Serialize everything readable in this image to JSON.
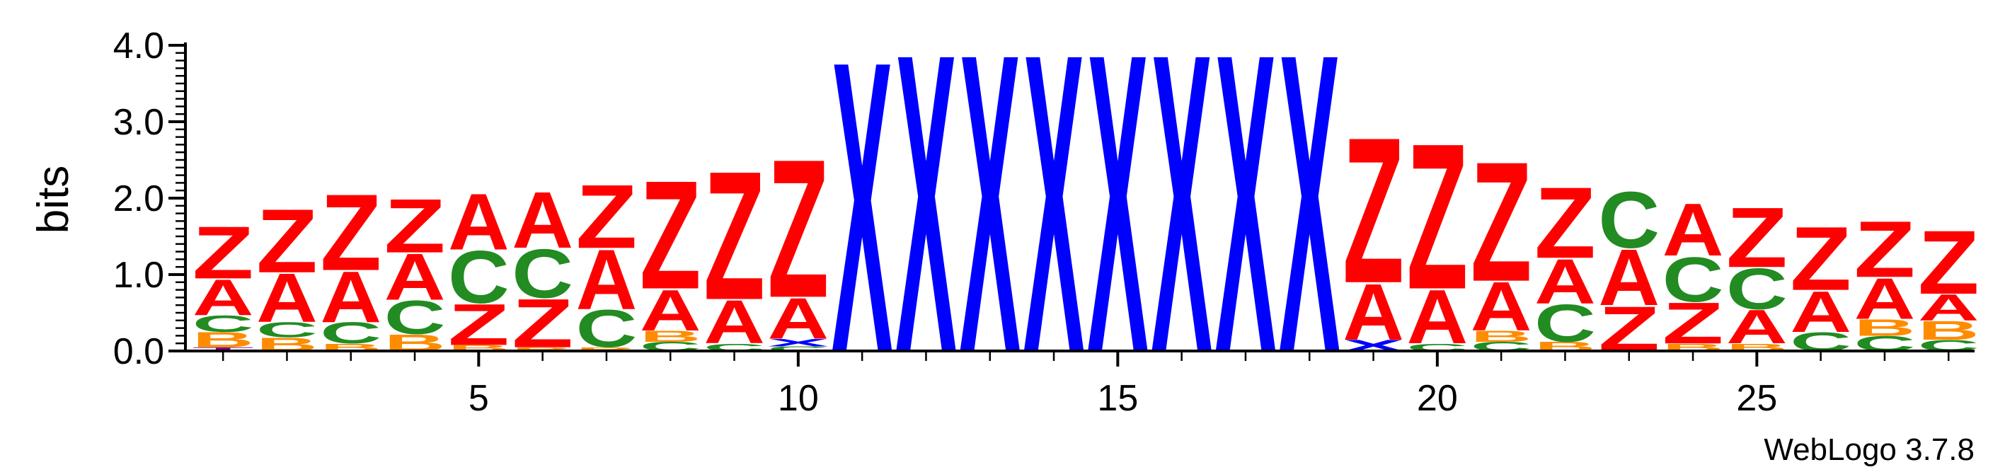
{
  "chart_data": {
    "type": "sequence-logo",
    "ylabel": "bits",
    "ylim": [
      0,
      4.0
    ],
    "y_ticks": [
      "0.0",
      "1.0",
      "2.0",
      "3.0",
      "4.0"
    ],
    "x_ticks": [
      5,
      10,
      15,
      20,
      25
    ],
    "positions": [
      1,
      28
    ],
    "credit": "WebLogo 3.7.8",
    "colors": {
      "Z": "#ff0000",
      "A": "#ff0000",
      "C": "#228b22",
      "B": "#ff8c00",
      "T": "#800080",
      "X": "#0000ff"
    },
    "columns": [
      {
        "pos": 1,
        "stack": [
          [
            "T",
            0.05
          ],
          [
            "B",
            0.2
          ],
          [
            "C",
            0.22
          ],
          [
            "A",
            0.48
          ],
          [
            "Z",
            0.7
          ]
        ]
      },
      {
        "pos": 2,
        "stack": [
          [
            "B",
            0.18
          ],
          [
            "C",
            0.2
          ],
          [
            "A",
            0.65
          ],
          [
            "Z",
            0.85
          ]
        ]
      },
      {
        "pos": 3,
        "stack": [
          [
            "B",
            0.1
          ],
          [
            "C",
            0.28
          ],
          [
            "A",
            0.68
          ],
          [
            "Z",
            1.02
          ]
        ]
      },
      {
        "pos": 4,
        "stack": [
          [
            "B",
            0.22
          ],
          [
            "C",
            0.45
          ],
          [
            "A",
            0.62
          ],
          [
            "Z",
            0.72
          ]
        ]
      },
      {
        "pos": 5,
        "stack": [
          [
            "B",
            0.08
          ],
          [
            "Z",
            0.55
          ],
          [
            "C",
            0.7
          ],
          [
            "A",
            0.75
          ]
        ]
      },
      {
        "pos": 6,
        "stack": [
          [
            "B",
            0.05
          ],
          [
            "Z",
            0.65
          ],
          [
            "C",
            0.65
          ],
          [
            "A",
            0.75
          ]
        ]
      },
      {
        "pos": 7,
        "stack": [
          [
            "B",
            0.05
          ],
          [
            "C",
            0.5
          ],
          [
            "A",
            0.8
          ],
          [
            "Z",
            0.85
          ]
        ]
      },
      {
        "pos": 8,
        "stack": [
          [
            "C",
            0.12
          ],
          [
            "B",
            0.15
          ],
          [
            "A",
            0.55
          ],
          [
            "Z",
            1.45
          ]
        ]
      },
      {
        "pos": 9,
        "stack": [
          [
            "C",
            0.1
          ],
          [
            "A",
            0.58
          ],
          [
            "Z",
            1.72
          ]
        ]
      },
      {
        "pos": 10,
        "stack": [
          [
            "C",
            0.06
          ],
          [
            "X",
            0.1
          ],
          [
            "A",
            0.55
          ],
          [
            "Z",
            1.85
          ]
        ]
      },
      {
        "pos": 11,
        "stack": [
          [
            "X",
            3.9
          ]
        ]
      },
      {
        "pos": 12,
        "stack": [
          [
            "X",
            4.0
          ]
        ]
      },
      {
        "pos": 13,
        "stack": [
          [
            "X",
            4.0
          ]
        ]
      },
      {
        "pos": 14,
        "stack": [
          [
            "X",
            4.0
          ]
        ]
      },
      {
        "pos": 15,
        "stack": [
          [
            "X",
            4.0
          ]
        ]
      },
      {
        "pos": 16,
        "stack": [
          [
            "X",
            4.0
          ]
        ]
      },
      {
        "pos": 17,
        "stack": [
          [
            "X",
            4.0
          ]
        ]
      },
      {
        "pos": 18,
        "stack": [
          [
            "X",
            4.0
          ]
        ]
      },
      {
        "pos": 19,
        "stack": [
          [
            "X",
            0.15
          ],
          [
            "A",
            0.75
          ],
          [
            "Z",
            1.95
          ]
        ]
      },
      {
        "pos": 20,
        "stack": [
          [
            "C",
            0.1
          ],
          [
            "A",
            0.72
          ],
          [
            "Z",
            1.95
          ]
        ]
      },
      {
        "pos": 21,
        "stack": [
          [
            "C",
            0.12
          ],
          [
            "B",
            0.15
          ],
          [
            "A",
            0.65
          ],
          [
            "Z",
            1.6
          ]
        ]
      },
      {
        "pos": 22,
        "stack": [
          [
            "B",
            0.12
          ],
          [
            "C",
            0.5
          ],
          [
            "A",
            0.6
          ],
          [
            "Z",
            0.95
          ]
        ]
      },
      {
        "pos": 23,
        "stack": [
          [
            "Z",
            0.6
          ],
          [
            "A",
            0.75
          ],
          [
            "C",
            0.75
          ]
        ]
      },
      {
        "pos": 24,
        "stack": [
          [
            "B",
            0.1
          ],
          [
            "Z",
            0.55
          ],
          [
            "C",
            0.6
          ],
          [
            "A",
            0.7
          ]
        ]
      },
      {
        "pos": 25,
        "stack": [
          [
            "B",
            0.1
          ],
          [
            "A",
            0.45
          ],
          [
            "C",
            0.55
          ],
          [
            "Z",
            0.8
          ]
        ]
      },
      {
        "pos": 26,
        "stack": [
          [
            "C",
            0.25
          ],
          [
            "A",
            0.55
          ],
          [
            "Z",
            0.85
          ]
        ]
      },
      {
        "pos": 27,
        "stack": [
          [
            "C",
            0.2
          ],
          [
            "B",
            0.22
          ],
          [
            "A",
            0.55
          ],
          [
            "Z",
            0.75
          ]
        ]
      },
      {
        "pos": 28,
        "stack": [
          [
            "C",
            0.15
          ],
          [
            "B",
            0.25
          ],
          [
            "A",
            0.35
          ],
          [
            "Z",
            0.85
          ]
        ]
      }
    ]
  }
}
